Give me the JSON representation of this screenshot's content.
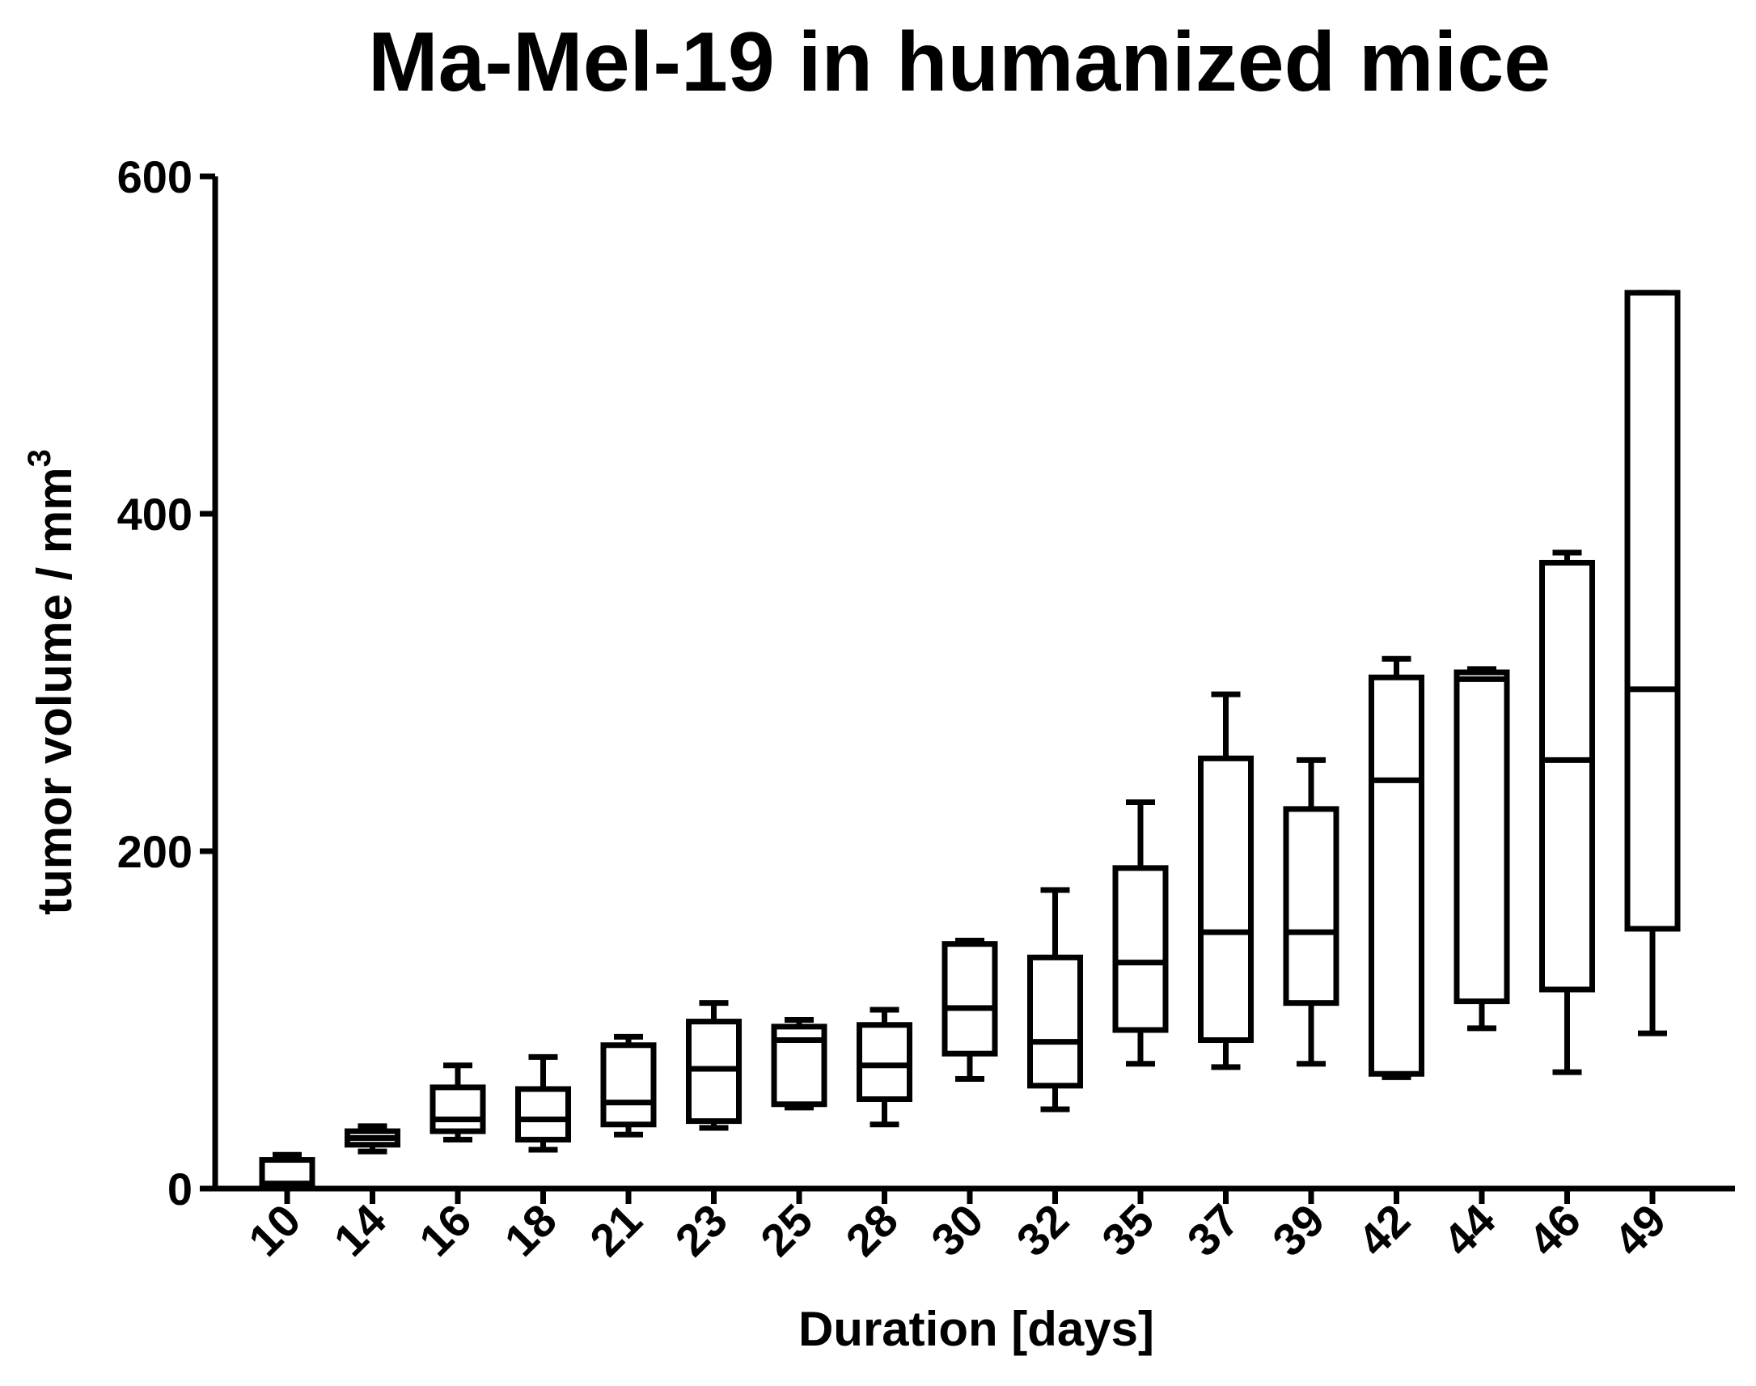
{
  "chart_data": {
    "type": "box",
    "title": "Ma-Mel-19 in humanized mice",
    "xlabel": "Duration [days]",
    "ylabel": "tumor volume / mm",
    "ylabel_superscript": "3",
    "ylim": [
      0,
      600
    ],
    "yticks": [
      "0",
      "200",
      "400",
      "600"
    ],
    "categories": [
      "10",
      "14",
      "16",
      "18",
      "21",
      "23",
      "25",
      "28",
      "30",
      "32",
      "35",
      "37",
      "39",
      "42",
      "44",
      "46",
      "49"
    ],
    "boxes": [
      {
        "day": "10",
        "min": 0,
        "q1": 1,
        "median": 3,
        "q3": 17,
        "max": 20
      },
      {
        "day": "14",
        "min": 22,
        "q1": 26,
        "median": 30,
        "q3": 34,
        "max": 37
      },
      {
        "day": "16",
        "min": 29,
        "q1": 34,
        "median": 41,
        "q3": 60,
        "max": 73
      },
      {
        "day": "18",
        "min": 23,
        "q1": 29,
        "median": 41,
        "q3": 59,
        "max": 78
      },
      {
        "day": "21",
        "min": 32,
        "q1": 38,
        "median": 51,
        "q3": 85,
        "max": 90
      },
      {
        "day": "23",
        "min": 36,
        "q1": 40,
        "median": 71,
        "q3": 99,
        "max": 110
      },
      {
        "day": "25",
        "min": 48,
        "q1": 50,
        "median": 88,
        "q3": 96,
        "max": 100
      },
      {
        "day": "28",
        "min": 38,
        "q1": 53,
        "median": 73,
        "q3": 97,
        "max": 106
      },
      {
        "day": "30",
        "min": 65,
        "q1": 80,
        "median": 107,
        "q3": 145,
        "max": 147
      },
      {
        "day": "32",
        "min": 47,
        "q1": 61,
        "median": 87,
        "q3": 137,
        "max": 177
      },
      {
        "day": "35",
        "min": 74,
        "q1": 94,
        "median": 134,
        "q3": 190,
        "max": 229
      },
      {
        "day": "37",
        "min": 72,
        "q1": 88,
        "median": 152,
        "q3": 255,
        "max": 293
      },
      {
        "day": "39",
        "min": 74,
        "q1": 110,
        "median": 152,
        "q3": 225,
        "max": 254
      },
      {
        "day": "42",
        "min": 66,
        "q1": 68,
        "median": 242,
        "q3": 303,
        "max": 314
      },
      {
        "day": "44",
        "min": 95,
        "q1": 111,
        "median": 302,
        "q3": 306,
        "max": 308
      },
      {
        "day": "46",
        "min": 69,
        "q1": 118,
        "median": 254,
        "q3": 371,
        "max": 377
      },
      {
        "day": "49",
        "min": 92,
        "q1": 154,
        "median": 296,
        "q3": 531,
        "max": 531
      }
    ]
  }
}
